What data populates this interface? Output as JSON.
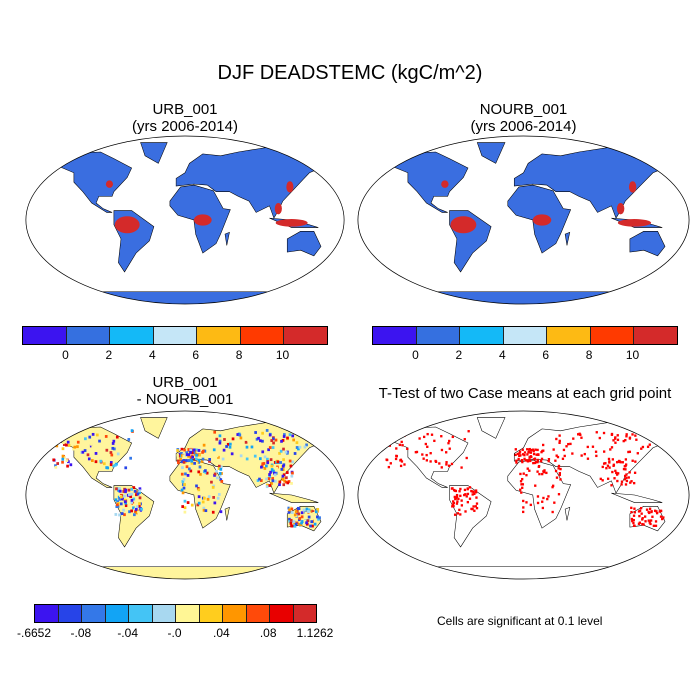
{
  "figure_title": "DJF DEADSTEMC (kgC/m^2)",
  "panels": {
    "top_left": {
      "title_line1": "URB_001",
      "title_line2": "(yrs 2006-2014)"
    },
    "top_right": {
      "title_line1": "NOURB_001",
      "title_line2": "(yrs 2006-2014)"
    },
    "bottom_left": {
      "title_line1": "URB_001",
      "title_line2": "- NOURB_001"
    },
    "bottom_right": {
      "title": "T-Test of two Case means at each grid point",
      "note": "Cells are significant at 0.1 level"
    }
  },
  "colorbar_abs": {
    "colors": [
      "#3c14f0",
      "#3570e0",
      "#14b9f7",
      "#c5e6f7",
      "#fdba14",
      "#ff3a00",
      "#d42a2a"
    ],
    "labels": [
      "0",
      "2",
      "4",
      "6",
      "8",
      "10"
    ]
  },
  "colorbar_diff": {
    "colors": [
      "#3c14f0",
      "#2744e8",
      "#3478e8",
      "#12a4f5",
      "#44c4f5",
      "#a8d8f0",
      "#fff695",
      "#ffcd1e",
      "#ff9600",
      "#ff4a0a",
      "#e80000",
      "#d42a2a"
    ],
    "labels": [
      "-.6652",
      "-.08",
      "-.04",
      "-.0",
      ".04",
      ".08",
      "1.1262"
    ]
  },
  "colors": {
    "land_abs": "#3a6ee0",
    "land_high": "#d42a2a",
    "land_diff": "#fff59d",
    "significant": "#ff0000"
  }
}
